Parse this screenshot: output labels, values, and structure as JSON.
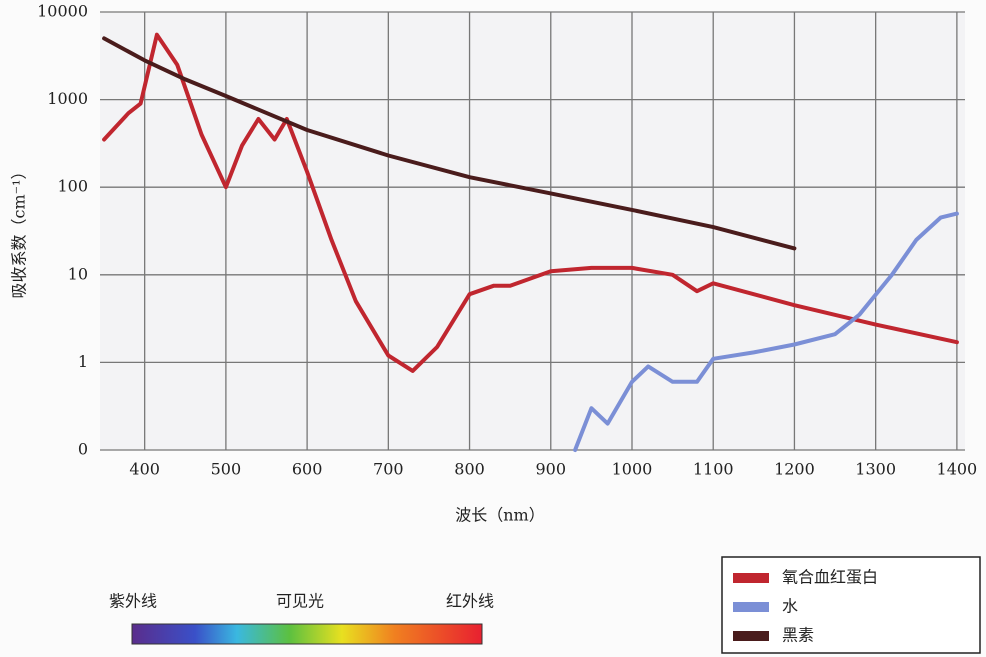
{
  "chart_data": {
    "type": "line",
    "xlabel": "波长（nm）",
    "ylabel": "吸收系数（cm⁻¹）",
    "log_y": true,
    "grid": true,
    "xlim": [
      345,
      1410
    ],
    "ylim": [
      0.1,
      10000
    ],
    "xticks": [
      400,
      500,
      600,
      700,
      800,
      900,
      1000,
      1100,
      1200,
      1300,
      1400
    ],
    "yticks": [
      {
        "value": 0.1,
        "label": "0"
      },
      1,
      10,
      100,
      1000,
      10000
    ],
    "legend": "bottom-right",
    "series": [
      {
        "name": "氧合血红蛋白",
        "color": "#c0262f",
        "x": [
          350,
          380,
          395,
          415,
          440,
          470,
          500,
          520,
          540,
          560,
          575,
          600,
          630,
          660,
          700,
          730,
          760,
          800,
          830,
          850,
          900,
          950,
          1000,
          1050,
          1080,
          1100,
          1200,
          1300,
          1400
        ],
        "values": [
          350,
          700,
          900,
          5500,
          2500,
          400,
          100,
          300,
          600,
          350,
          600,
          150,
          25,
          5,
          1.2,
          0.8,
          1.5,
          6,
          7.5,
          7.5,
          11,
          12,
          12,
          10,
          6.5,
          8,
          4.5,
          2.7,
          1.7
        ]
      },
      {
        "name": "水",
        "color": "#7b8fd6",
        "x": [
          930,
          950,
          970,
          1000,
          1020,
          1050,
          1080,
          1100,
          1150,
          1200,
          1250,
          1280,
          1320,
          1350,
          1380,
          1400
        ],
        "values": [
          0.1,
          0.3,
          0.2,
          0.6,
          0.9,
          0.6,
          0.6,
          1.1,
          1.3,
          1.6,
          2.1,
          3.5,
          10,
          25,
          45,
          50
        ]
      },
      {
        "name": "黑素",
        "color": "#4a1c1c",
        "x": [
          350,
          400,
          450,
          500,
          600,
          700,
          800,
          900,
          1000,
          1100,
          1200
        ],
        "values": [
          5000,
          2800,
          1700,
          1100,
          450,
          230,
          130,
          85,
          55,
          35,
          20
        ]
      }
    ],
    "spectrum": {
      "labels": [
        "紫外线",
        "可见光",
        "红外线"
      ]
    }
  }
}
